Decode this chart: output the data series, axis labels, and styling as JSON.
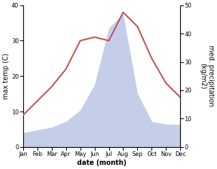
{
  "months": [
    "Jan",
    "Feb",
    "Mar",
    "Apr",
    "May",
    "Jun",
    "Jul",
    "Aug",
    "Sep",
    "Oct",
    "Nov",
    "Dec"
  ],
  "temp": [
    9,
    13,
    17,
    22,
    30,
    31,
    30,
    38,
    34,
    25,
    18,
    14
  ],
  "precip": [
    5,
    6,
    7,
    9,
    13,
    22,
    42,
    47,
    19,
    9,
    8,
    8
  ],
  "temp_color": "#c0504d",
  "precip_fill_color": "#c5cee8",
  "temp_ylim": [
    0,
    40
  ],
  "precip_ylim": [
    0,
    50
  ],
  "temp_yticks": [
    0,
    10,
    20,
    30,
    40
  ],
  "precip_yticks": [
    0,
    10,
    20,
    30,
    40,
    50
  ],
  "ylabel_left": "max temp (C)",
  "ylabel_right": "med. precipitation\n(kg/m2)",
  "xlabel": "date (month)",
  "xlabel_fontsize": 7,
  "ylabel_fontsize": 7,
  "tick_fontsize": 6,
  "line_width": 1.5
}
